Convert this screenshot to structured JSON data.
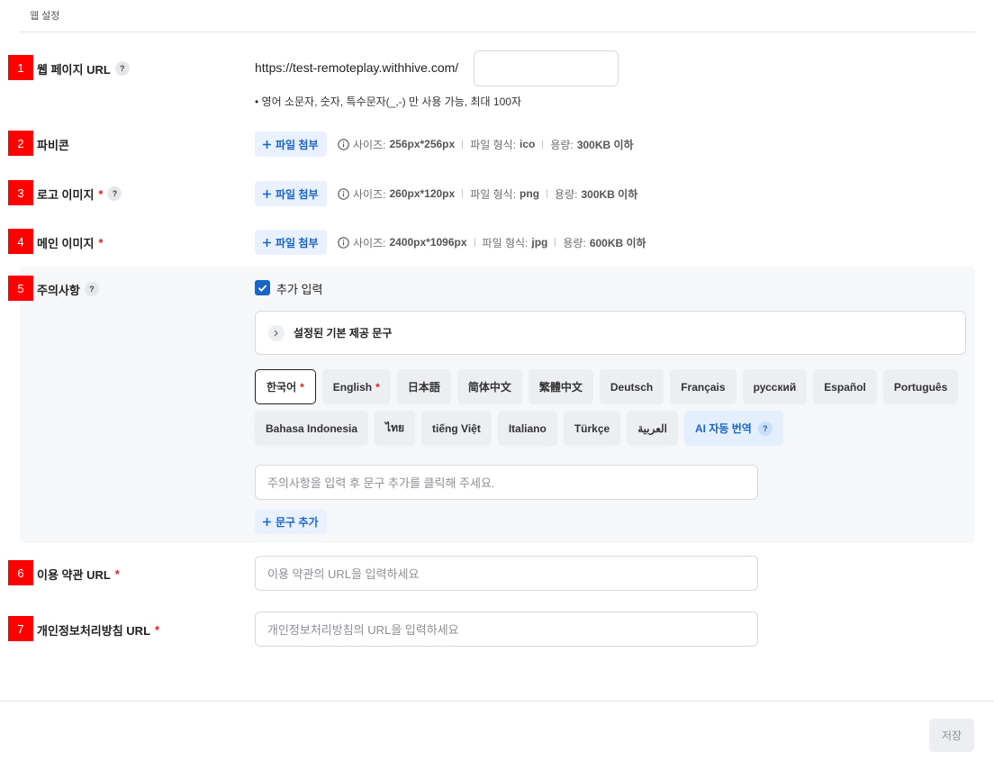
{
  "header": {
    "title": "웹 설정"
  },
  "fields": [
    {
      "number": "1",
      "label": "웹 페이지 URL",
      "help": "?",
      "prefix": "https://test-remoteplay.withhive.com/",
      "hint": "• 영어 소문자, 숫자, 특수문자(_,-) 만 사용 가능, 최대 100자"
    },
    {
      "number": "2",
      "label": "파비콘",
      "button": "파일 첨부",
      "size_label": "사이즈:",
      "size": "256px*256px",
      "format_label": "파일 형식:",
      "format": "ico",
      "capacity_label": "용량:",
      "capacity": "300KB 이하"
    },
    {
      "number": "3",
      "label": "로고 이미지",
      "required": "*",
      "help": "?",
      "button": "파일 첨부",
      "size_label": "사이즈:",
      "size": "260px*120px",
      "format_label": "파일 형식:",
      "format": "png",
      "capacity_label": "용량:",
      "capacity": "300KB 이하"
    },
    {
      "number": "4",
      "label": "메인 이미지",
      "required": "*",
      "button": "파일 첨부",
      "size_label": "사이즈:",
      "size": "2400px*1096px",
      "format_label": "파일 형식:",
      "format": "jpg",
      "capacity_label": "용량:",
      "capacity": "600KB 이하"
    },
    {
      "number": "5",
      "label": "주의사항",
      "help": "?",
      "checkbox_label": "추가 입력",
      "checked": true,
      "collapse_label": "설정된 기본 제공 문구",
      "languages": [
        {
          "label": "한국어",
          "required": "*",
          "selected": true
        },
        {
          "label": "English",
          "required": "*"
        },
        {
          "label": "日本語"
        },
        {
          "label": "简体中文"
        },
        {
          "label": "繁體中文"
        },
        {
          "label": "Deutsch"
        },
        {
          "label": "Français"
        },
        {
          "label": "русский"
        },
        {
          "label": "Español"
        },
        {
          "label": "Português"
        },
        {
          "label": "Bahasa Indonesia"
        },
        {
          "label": "ไทย"
        },
        {
          "label": "tiếng Việt"
        },
        {
          "label": "Italiano"
        },
        {
          "label": "Türkçe"
        },
        {
          "label": "العربية"
        }
      ],
      "ai_translate": {
        "label": "AI 자동 번역",
        "help": "?"
      },
      "placeholder": "주의사항을 입력 후 문구 추가를 클릭해 주세요.",
      "add_button": "문구 추가"
    },
    {
      "number": "6",
      "label": "이용 약관 URL",
      "required": "*",
      "placeholder": "이용 약관의 URL을 입력하세요"
    },
    {
      "number": "7",
      "label": "개인정보처리방침 URL",
      "required": "*",
      "placeholder": "개인정보처리방침의 URL을 입력하세요"
    }
  ],
  "save_button": "저장"
}
